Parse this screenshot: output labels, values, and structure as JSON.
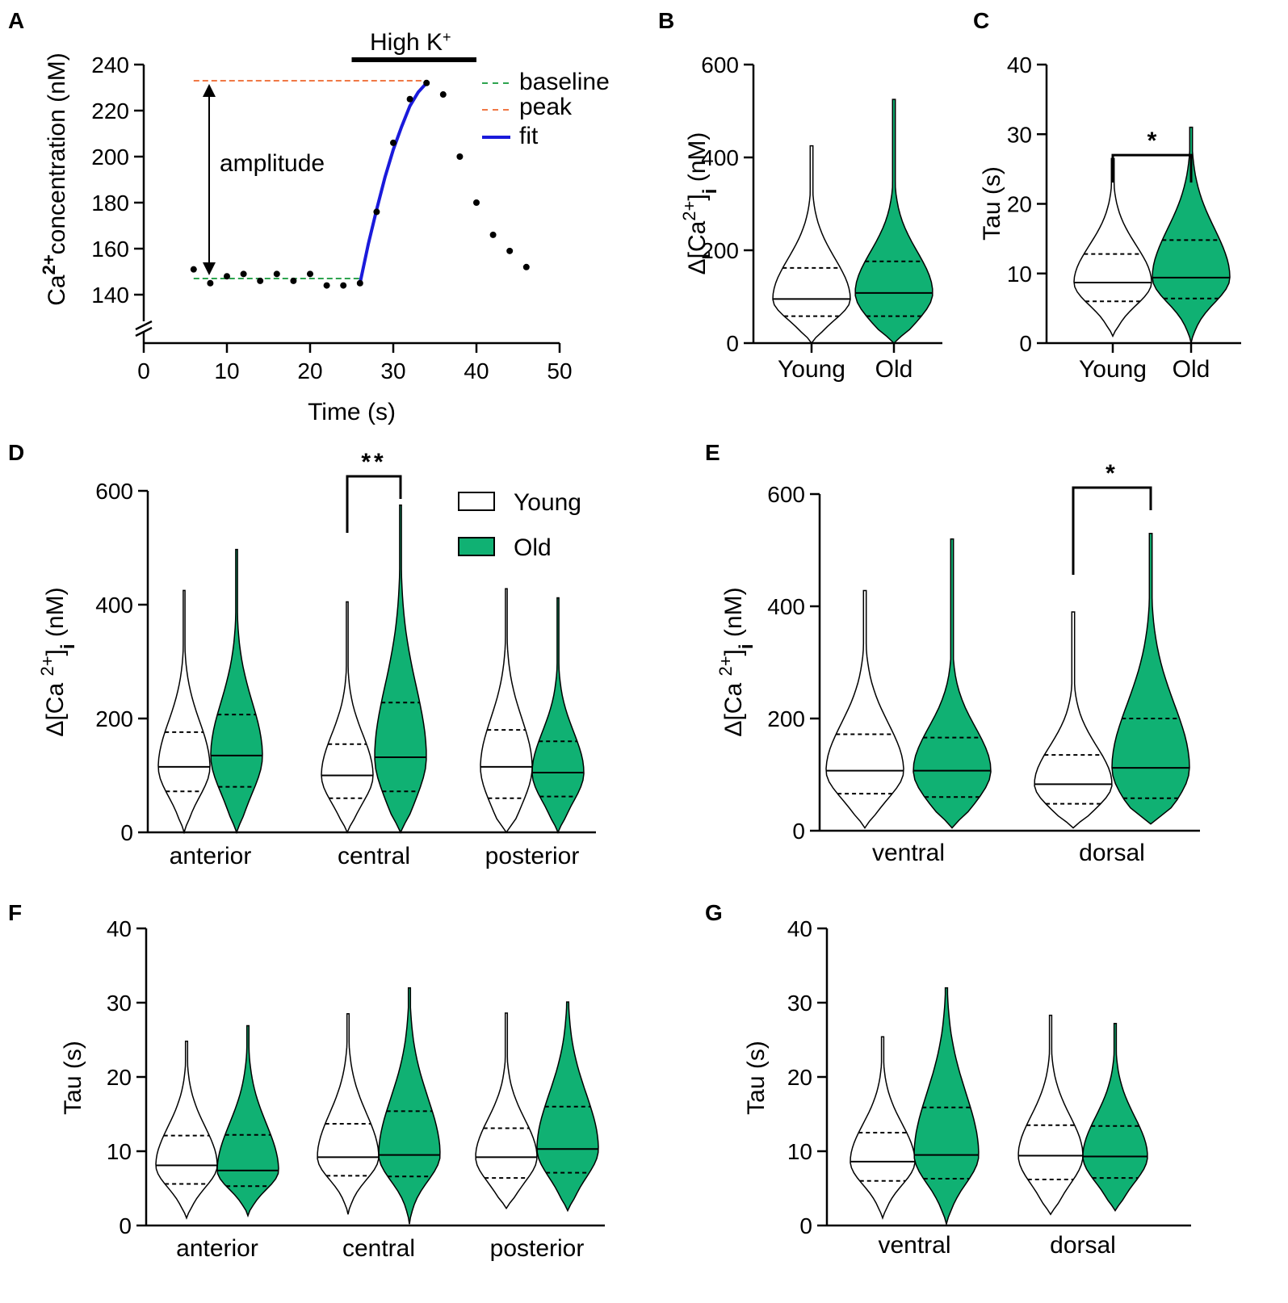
{
  "colors": {
    "young": "#ffffff",
    "old": "#10b173",
    "baseline": "#2ea44f",
    "peak": "#f07845",
    "fit": "#1a1adb",
    "ink": "#000000"
  },
  "chart_data": [
    {
      "id": "A",
      "panel_label": "A",
      "type": "scatter",
      "xlabel": "Time (s)",
      "ylabel": "Ca2+ concentration (nM)",
      "ylabel_base": "Ca",
      "ylabel_sup": "2+",
      "ylabel_rest": "concentration (nM)",
      "xlim": [
        0,
        50
      ],
      "ylim": [
        130,
        240
      ],
      "xticks": [
        0,
        10,
        20,
        30,
        40,
        50
      ],
      "yticks": [
        140,
        160,
        180,
        200,
        220,
        240
      ],
      "points": [
        [
          6,
          151
        ],
        [
          8,
          145
        ],
        [
          10,
          148
        ],
        [
          12,
          149
        ],
        [
          14,
          146
        ],
        [
          16,
          149
        ],
        [
          18,
          146
        ],
        [
          20,
          149
        ],
        [
          22,
          144
        ],
        [
          24,
          144
        ],
        [
          26,
          145
        ],
        [
          28,
          176
        ],
        [
          30,
          206
        ],
        [
          32,
          225
        ],
        [
          34,
          232
        ],
        [
          36,
          227
        ],
        [
          38,
          200
        ],
        [
          40,
          180
        ],
        [
          42,
          166
        ],
        [
          44,
          159
        ],
        [
          46,
          152
        ]
      ],
      "baseline": {
        "label": "baseline",
        "y": 147,
        "x": [
          6,
          26
        ]
      },
      "peak": {
        "label": "peak",
        "y": 233,
        "x": [
          6,
          34
        ]
      },
      "fit": {
        "label": "fit",
        "x": [
          26,
          27,
          28,
          29,
          30,
          31,
          32,
          33,
          34
        ],
        "y": [
          145,
          162,
          177,
          191,
          203,
          213,
          222,
          228,
          232
        ]
      },
      "amplitude_label": "amplitude",
      "stimulus": {
        "label_base": "High K",
        "label_sup": "+",
        "x": [
          25,
          40
        ]
      }
    },
    {
      "id": "B",
      "panel_label": "B",
      "type": "violin",
      "ylabel": "Δ[Ca2+]i (nM)",
      "ylabel_base": "Δ[Ca",
      "ylabel_sup": "2+",
      "ylabel_close": "]",
      "ylabel_sub": "i",
      "ylabel_unit": " (nM)",
      "ylim": [
        0,
        600
      ],
      "yticks": [
        0,
        200,
        400,
        600
      ],
      "categories": [
        "Young",
        "Old"
      ],
      "series": [
        {
          "name": "Young",
          "median": 95,
          "q1": 58,
          "q3": 162,
          "min": 0,
          "max": 425
        },
        {
          "name": "Old",
          "median": 108,
          "q1": 58,
          "q3": 176,
          "min": 0,
          "max": 525
        }
      ],
      "significance": []
    },
    {
      "id": "C",
      "panel_label": "C",
      "type": "violin",
      "ylabel": "Tau (s)",
      "ylim": [
        0,
        40
      ],
      "yticks": [
        0,
        10,
        20,
        30,
        40
      ],
      "categories": [
        "Young",
        "Old"
      ],
      "series": [
        {
          "name": "Young",
          "median": 8.7,
          "q1": 6,
          "q3": 12.8,
          "min": 1,
          "max": 26.5
        },
        {
          "name": "Old",
          "median": 9.4,
          "q1": 6.4,
          "q3": 14.8,
          "min": 0,
          "max": 31
        }
      ],
      "significance": [
        {
          "label": "*",
          "from": 0,
          "to": 1
        }
      ]
    },
    {
      "id": "D",
      "panel_label": "D",
      "type": "violin",
      "ylabel": "Δ[Ca 2+]i (nM)",
      "ylabel_base": "Δ[Ca ",
      "ylabel_sup": "2+",
      "ylabel_close": "]",
      "ylabel_sub": "i",
      "ylabel_unit": " (nM)",
      "ylim": [
        0,
        600
      ],
      "yticks": [
        0,
        200,
        400,
        600
      ],
      "categories": [
        "anterior",
        "central",
        "posterior"
      ],
      "legend": {
        "young": "Young",
        "old": "Old"
      },
      "series": [
        {
          "name": "Young",
          "values": [
            {
              "median": 115,
              "q1": 72,
              "q3": 176,
              "min": 0,
              "max": 425
            },
            {
              "median": 100,
              "q1": 60,
              "q3": 155,
              "min": 0,
              "max": 405
            },
            {
              "median": 115,
              "q1": 60,
              "q3": 180,
              "min": 0,
              "max": 428
            }
          ]
        },
        {
          "name": "Old",
          "values": [
            {
              "median": 135,
              "q1": 80,
              "q3": 207,
              "min": 0,
              "max": 497
            },
            {
              "median": 132,
              "q1": 72,
              "q3": 228,
              "min": 0,
              "max": 575
            },
            {
              "median": 105,
              "q1": 63,
              "q3": 160,
              "min": 0,
              "max": 412
            }
          ]
        }
      ],
      "significance": [
        {
          "label": "**",
          "category": 1
        }
      ]
    },
    {
      "id": "E",
      "panel_label": "E",
      "type": "violin",
      "ylabel": "Δ[Ca 2+]i (nM)",
      "ylabel_base": "Δ[Ca ",
      "ylabel_sup": "2+",
      "ylabel_close": "]",
      "ylabel_sub": "i",
      "ylabel_unit": " (nM)",
      "ylim": [
        0,
        600
      ],
      "yticks": [
        0,
        200,
        400,
        600
      ],
      "categories": [
        "ventral",
        "dorsal"
      ],
      "series": [
        {
          "name": "Young",
          "values": [
            {
              "median": 107,
              "q1": 66,
              "q3": 172,
              "min": 5,
              "max": 428
            },
            {
              "median": 83,
              "q1": 48,
              "q3": 135,
              "min": 5,
              "max": 390
            }
          ]
        },
        {
          "name": "Old",
          "values": [
            {
              "median": 107,
              "q1": 60,
              "q3": 166,
              "min": 5,
              "max": 520
            },
            {
              "median": 112,
              "q1": 58,
              "q3": 200,
              "min": 12,
              "max": 530
            }
          ]
        }
      ],
      "significance": [
        {
          "label": "*",
          "category": 1
        }
      ]
    },
    {
      "id": "F",
      "panel_label": "F",
      "type": "violin",
      "ylabel": "Tau (s)",
      "ylim": [
        0,
        40
      ],
      "yticks": [
        0,
        10,
        20,
        30,
        40
      ],
      "categories": [
        "anterior",
        "central",
        "posterior"
      ],
      "series": [
        {
          "name": "Young",
          "values": [
            {
              "median": 8.1,
              "q1": 5.6,
              "q3": 12.1,
              "min": 1,
              "max": 24.8
            },
            {
              "median": 9.2,
              "q1": 6.7,
              "q3": 13.7,
              "min": 1.5,
              "max": 28.5
            },
            {
              "median": 9.2,
              "q1": 6.4,
              "q3": 13.1,
              "min": 2.3,
              "max": 28.6
            }
          ]
        },
        {
          "name": "Old",
          "values": [
            {
              "median": 7.4,
              "q1": 5.3,
              "q3": 12.2,
              "min": 1.3,
              "max": 26.9
            },
            {
              "median": 9.5,
              "q1": 6.6,
              "q3": 15.4,
              "min": 0.2,
              "max": 32
            },
            {
              "median": 10.3,
              "q1": 7.1,
              "q3": 16,
              "min": 2,
              "max": 30.1
            }
          ]
        }
      ],
      "significance": []
    },
    {
      "id": "G",
      "panel_label": "G",
      "type": "violin",
      "ylabel": "Tau (s)",
      "ylim": [
        0,
        40
      ],
      "yticks": [
        0,
        10,
        20,
        30,
        40
      ],
      "categories": [
        "ventral",
        "dorsal"
      ],
      "series": [
        {
          "name": "Young",
          "values": [
            {
              "median": 8.6,
              "q1": 6,
              "q3": 12.5,
              "min": 1,
              "max": 25.4
            },
            {
              "median": 9.4,
              "q1": 6.2,
              "q3": 13.5,
              "min": 1.5,
              "max": 28.3
            }
          ]
        },
        {
          "name": "Old",
          "values": [
            {
              "median": 9.5,
              "q1": 6.3,
              "q3": 15.9,
              "min": 0.2,
              "max": 32
            },
            {
              "median": 9.3,
              "q1": 6.4,
              "q3": 13.4,
              "min": 2,
              "max": 27.2
            }
          ]
        }
      ],
      "significance": []
    }
  ]
}
